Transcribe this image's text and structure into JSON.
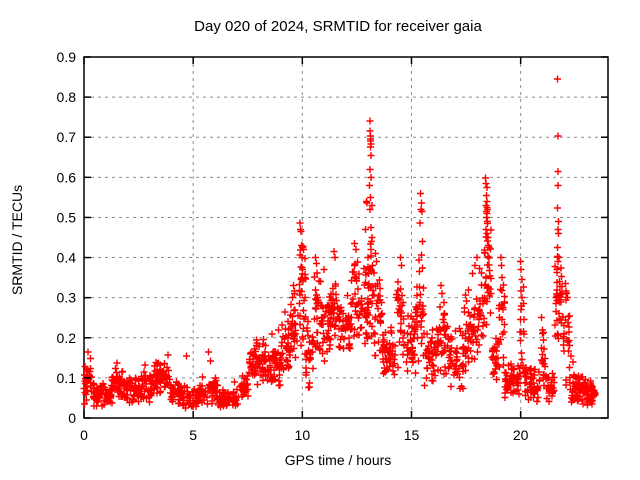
{
  "figure": {
    "background": "#ffffff",
    "text_color": "#000000",
    "border_color": "#000000",
    "grid_color": "#8c8c8c"
  },
  "chart_data": {
    "type": "scatter",
    "title": "Day 020 of 2024, SRMTID for receiver gaia",
    "xlabel": "GPS time / hours",
    "ylabel": "SRMTID / TECUs",
    "xlim": [
      0,
      24
    ],
    "ylim": [
      0,
      0.9
    ],
    "xticks": [
      {
        "v": 0,
        "label": "0"
      },
      {
        "v": 5,
        "label": "5"
      },
      {
        "v": 10,
        "label": "10"
      },
      {
        "v": 15,
        "label": "15"
      },
      {
        "v": 20,
        "label": "20"
      }
    ],
    "yticks": [
      {
        "v": 0.0,
        "label": "0"
      },
      {
        "v": 0.1,
        "label": "0.1"
      },
      {
        "v": 0.2,
        "label": "0.2"
      },
      {
        "v": 0.3,
        "label": "0.3"
      },
      {
        "v": 0.4,
        "label": "0.4"
      },
      {
        "v": 0.5,
        "label": "0.5"
      },
      {
        "v": 0.6,
        "label": "0.6"
      },
      {
        "v": 0.7,
        "label": "0.7"
      },
      {
        "v": 0.8,
        "label": "0.8"
      },
      {
        "v": 0.9,
        "label": "0.9"
      }
    ],
    "grid": "dashed",
    "legend": "none",
    "marker": {
      "shape": "plus",
      "color": "#ff0000",
      "size": 7
    },
    "series": [
      {
        "name": "SRMTID",
        "color": "#ff0000",
        "outlier_points": [
          [
            0.18,
            0.165
          ],
          [
            0.3,
            0.148
          ],
          [
            1.5,
            0.137
          ],
          [
            2.8,
            0.132
          ],
          [
            3.3,
            0.138
          ],
          [
            3.85,
            0.157
          ],
          [
            4.7,
            0.155
          ],
          [
            5.7,
            0.165
          ],
          [
            5.8,
            0.142
          ],
          [
            6.9,
            0.09
          ],
          [
            7.9,
            0.195
          ],
          [
            8.2,
            0.185
          ],
          [
            8.6,
            0.21
          ],
          [
            8.9,
            0.22
          ],
          [
            9.2,
            0.264
          ],
          [
            9.35,
            0.24
          ],
          [
            9.55,
            0.3
          ],
          [
            9.6,
            0.33
          ],
          [
            9.65,
            0.31
          ],
          [
            9.9,
            0.486
          ],
          [
            9.92,
            0.47
          ],
          [
            9.95,
            0.465
          ],
          [
            9.97,
            0.43
          ],
          [
            10.0,
            0.425
          ],
          [
            10.02,
            0.428
          ],
          [
            10.05,
            0.42
          ],
          [
            9.98,
            0.4
          ],
          [
            10.0,
            0.37
          ],
          [
            9.93,
            0.345
          ],
          [
            10.6,
            0.4
          ],
          [
            10.65,
            0.385
          ],
          [
            11.0,
            0.37
          ],
          [
            11.45,
            0.415
          ],
          [
            11.5,
            0.4
          ],
          [
            12.4,
            0.435
          ],
          [
            12.45,
            0.42
          ],
          [
            12.9,
            0.47
          ],
          [
            12.95,
            0.54
          ],
          [
            12.97,
            0.536
          ],
          [
            13.1,
            0.74
          ],
          [
            13.1,
            0.715
          ],
          [
            13.12,
            0.703
          ],
          [
            13.12,
            0.695
          ],
          [
            13.13,
            0.69
          ],
          [
            13.14,
            0.683
          ],
          [
            13.12,
            0.676
          ],
          [
            13.15,
            0.655
          ],
          [
            13.1,
            0.62
          ],
          [
            13.15,
            0.6
          ],
          [
            13.08,
            0.58
          ],
          [
            13.12,
            0.55
          ],
          [
            13.18,
            0.53
          ],
          [
            13.1,
            0.52
          ],
          [
            13.14,
            0.475
          ],
          [
            13.2,
            0.45
          ],
          [
            13.35,
            0.41
          ],
          [
            13.4,
            0.39
          ],
          [
            14.5,
            0.4
          ],
          [
            14.55,
            0.38
          ],
          [
            15.42,
            0.56
          ],
          [
            15.45,
            0.536
          ],
          [
            15.44,
            0.52
          ],
          [
            15.48,
            0.515
          ],
          [
            15.4,
            0.486
          ],
          [
            15.5,
            0.44
          ],
          [
            15.46,
            0.406
          ],
          [
            16.35,
            0.33
          ],
          [
            16.4,
            0.31
          ],
          [
            17.8,
            0.36
          ],
          [
            17.9,
            0.38
          ],
          [
            18.0,
            0.4
          ],
          [
            18.4,
            0.598
          ],
          [
            18.42,
            0.585
          ],
          [
            18.45,
            0.575
          ],
          [
            18.44,
            0.555
          ],
          [
            18.46,
            0.54
          ],
          [
            18.42,
            0.53
          ],
          [
            18.45,
            0.525
          ],
          [
            18.47,
            0.52
          ],
          [
            18.43,
            0.515
          ],
          [
            18.46,
            0.51
          ],
          [
            18.44,
            0.5
          ],
          [
            18.48,
            0.49
          ],
          [
            18.41,
            0.47
          ],
          [
            18.46,
            0.46
          ],
          [
            18.5,
            0.45
          ],
          [
            18.52,
            0.43
          ],
          [
            19.1,
            0.4
          ],
          [
            19.12,
            0.38
          ],
          [
            19.15,
            0.35
          ],
          [
            19.08,
            0.32
          ],
          [
            20.0,
            0.39
          ],
          [
            20.02,
            0.37
          ],
          [
            20.05,
            0.345
          ],
          [
            20.05,
            0.3
          ],
          [
            20.95,
            0.25
          ],
          [
            21.0,
            0.22
          ],
          [
            21.68,
            0.845
          ],
          [
            21.7,
            0.703
          ],
          [
            21.7,
            0.614
          ],
          [
            21.72,
            0.58
          ],
          [
            21.69,
            0.523
          ],
          [
            21.73,
            0.49
          ],
          [
            21.7,
            0.47
          ],
          [
            21.74,
            0.46
          ],
          [
            21.68,
            0.425
          ],
          [
            21.76,
            0.4
          ],
          [
            21.72,
            0.39
          ],
          [
            21.66,
            0.37
          ],
          [
            22.05,
            0.335
          ],
          [
            22.1,
            0.31
          ],
          [
            22.15,
            0.3
          ],
          [
            22.3,
            0.155
          ],
          [
            22.4,
            0.14
          ]
        ],
        "noise_bands": [
          [
            0.0,
            0.35,
            0.025,
            0.155,
            30
          ],
          [
            0.35,
            0.9,
            0.02,
            0.1,
            40
          ],
          [
            0.9,
            1.25,
            0.02,
            0.085,
            25
          ],
          [
            1.25,
            1.8,
            0.035,
            0.135,
            40
          ],
          [
            1.8,
            2.6,
            0.03,
            0.11,
            55
          ],
          [
            2.6,
            3.15,
            0.035,
            0.125,
            38
          ],
          [
            3.15,
            3.95,
            0.04,
            0.145,
            55
          ],
          [
            3.95,
            4.35,
            0.03,
            0.1,
            28
          ],
          [
            4.35,
            5.3,
            0.02,
            0.085,
            62
          ],
          [
            5.3,
            6.15,
            0.03,
            0.105,
            55
          ],
          [
            6.15,
            7.1,
            0.02,
            0.075,
            62
          ],
          [
            7.1,
            7.55,
            0.035,
            0.12,
            30
          ],
          [
            7.55,
            8.35,
            0.08,
            0.2,
            60
          ],
          [
            8.35,
            9.0,
            0.07,
            0.175,
            48
          ],
          [
            9.0,
            9.45,
            0.1,
            0.24,
            33
          ],
          [
            9.45,
            9.85,
            0.14,
            0.33,
            30
          ],
          [
            9.85,
            10.15,
            0.15,
            0.44,
            28
          ],
          [
            10.15,
            10.55,
            0.06,
            0.26,
            28
          ],
          [
            10.55,
            10.85,
            0.15,
            0.38,
            24
          ],
          [
            10.85,
            11.3,
            0.14,
            0.33,
            38
          ],
          [
            11.3,
            11.65,
            0.17,
            0.4,
            28
          ],
          [
            11.65,
            12.25,
            0.14,
            0.32,
            45
          ],
          [
            12.25,
            12.65,
            0.15,
            0.42,
            30
          ],
          [
            12.65,
            13.0,
            0.16,
            0.43,
            28
          ],
          [
            13.0,
            13.3,
            0.18,
            0.47,
            30
          ],
          [
            13.3,
            13.65,
            0.13,
            0.38,
            26
          ],
          [
            13.65,
            14.3,
            0.09,
            0.23,
            48
          ],
          [
            14.3,
            14.65,
            0.1,
            0.38,
            26
          ],
          [
            14.65,
            15.2,
            0.09,
            0.28,
            40
          ],
          [
            15.2,
            15.6,
            0.12,
            0.42,
            30
          ],
          [
            15.6,
            16.1,
            0.07,
            0.23,
            36
          ],
          [
            16.1,
            16.65,
            0.1,
            0.32,
            40
          ],
          [
            16.65,
            17.4,
            0.07,
            0.24,
            52
          ],
          [
            17.4,
            18.05,
            0.1,
            0.35,
            48
          ],
          [
            18.05,
            18.32,
            0.15,
            0.4,
            22
          ],
          [
            18.32,
            18.68,
            0.2,
            0.5,
            34
          ],
          [
            18.68,
            19.0,
            0.09,
            0.22,
            24
          ],
          [
            19.0,
            19.28,
            0.12,
            0.4,
            20
          ],
          [
            19.28,
            19.95,
            0.04,
            0.14,
            48
          ],
          [
            19.95,
            20.15,
            0.06,
            0.38,
            18
          ],
          [
            20.15,
            20.85,
            0.035,
            0.13,
            50
          ],
          [
            20.85,
            21.12,
            0.05,
            0.24,
            20
          ],
          [
            21.12,
            21.55,
            0.035,
            0.13,
            30
          ],
          [
            21.55,
            21.9,
            0.15,
            0.42,
            34
          ],
          [
            21.9,
            22.25,
            0.06,
            0.34,
            26
          ],
          [
            22.25,
            23.0,
            0.025,
            0.115,
            60
          ],
          [
            23.0,
            23.4,
            0.025,
            0.095,
            42
          ]
        ]
      }
    ]
  }
}
